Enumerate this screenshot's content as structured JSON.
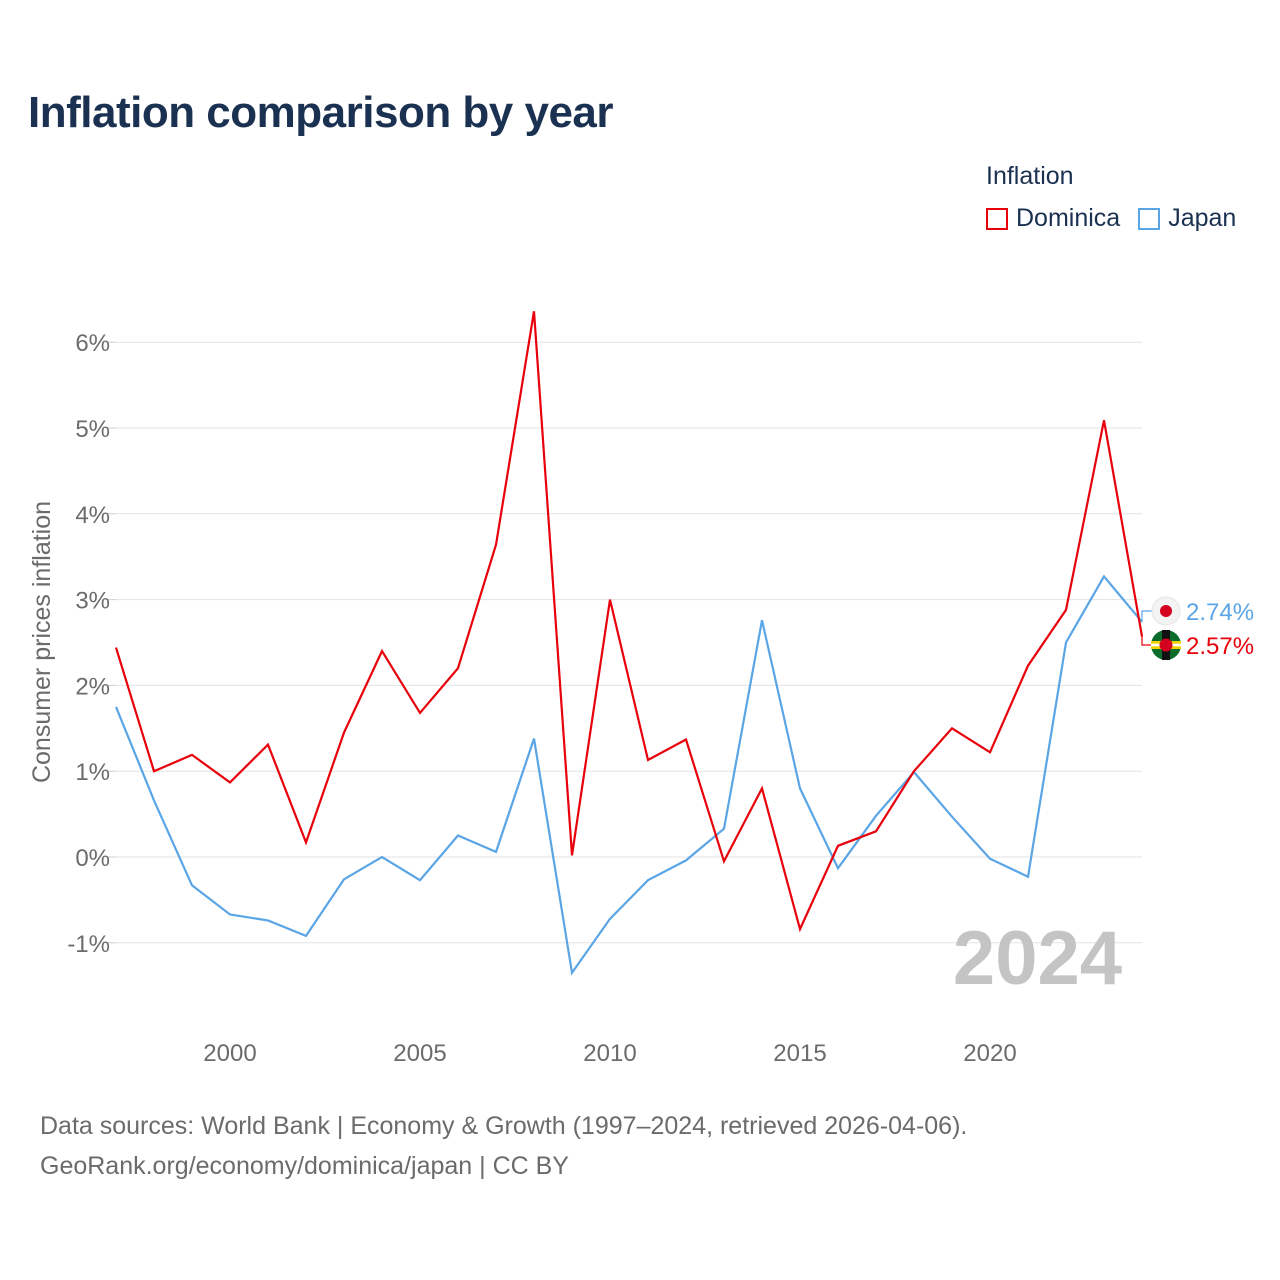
{
  "title": "Inflation comparison by year",
  "legend": {
    "title": "Inflation",
    "items": [
      {
        "name": "Dominica",
        "color": "#e8000b"
      },
      {
        "name": "Japan",
        "color": "#5aa5e6"
      }
    ]
  },
  "source": {
    "line1": "Data sources: World Bank | Economy & Growth (1997–2024, retrieved 2026-04-06).",
    "line2": "GeoRank.org/economy/dominica/japan | CC BY"
  },
  "chart_data": {
    "type": "line",
    "title": "Inflation comparison by year",
    "ylabel": "Consumer prices inflation",
    "xlabel": "",
    "xlim": [
      1997,
      2024
    ],
    "ylim": [
      -1.7,
      6.5
    ],
    "y_ticks": [
      -1,
      0,
      1,
      2,
      3,
      4,
      5,
      6
    ],
    "y_tick_labels": [
      "-1%",
      "0%",
      "1%",
      "2%",
      "3%",
      "4%",
      "5%",
      "6%"
    ],
    "x_ticks": [
      2000,
      2005,
      2010,
      2015,
      2020
    ],
    "x_tick_labels": [
      "2000",
      "2005",
      "2010",
      "2015",
      "2020"
    ],
    "grid": true,
    "legend_position": "top-right",
    "year_watermark": "2024",
    "x": [
      1997,
      1998,
      1999,
      2000,
      2001,
      2002,
      2003,
      2004,
      2005,
      2006,
      2007,
      2008,
      2009,
      2010,
      2011,
      2012,
      2013,
      2014,
      2015,
      2016,
      2017,
      2018,
      2019,
      2020,
      2021,
      2022,
      2023,
      2024
    ],
    "series": [
      {
        "name": "Dominica",
        "color": "#e8000b",
        "end_label": "2.57%",
        "values": [
          2.44,
          1.0,
          1.19,
          0.87,
          1.31,
          0.17,
          1.45,
          2.4,
          1.68,
          2.2,
          3.64,
          6.36,
          0.02,
          3.0,
          1.13,
          1.37,
          -0.05,
          0.8,
          -0.84,
          0.13,
          0.3,
          1.0,
          1.5,
          1.22,
          2.23,
          2.88,
          5.09,
          2.57
        ]
      },
      {
        "name": "Japan",
        "color": "#5aa5e6",
        "end_label": "2.74%",
        "values": [
          1.75,
          0.66,
          -0.33,
          -0.67,
          -0.74,
          -0.92,
          -0.26,
          0.0,
          -0.27,
          0.25,
          0.06,
          1.38,
          -1.35,
          -0.72,
          -0.27,
          -0.04,
          0.33,
          2.76,
          0.8,
          -0.13,
          0.48,
          0.99,
          0.47,
          -0.02,
          -0.23,
          2.5,
          3.27,
          2.74
        ]
      }
    ]
  }
}
